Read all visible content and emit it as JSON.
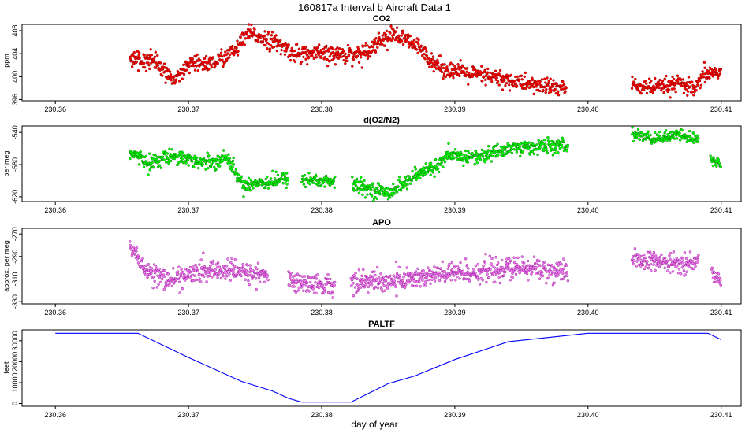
{
  "figure": {
    "title": "160817a   Interval b Aircraft Data 1",
    "xlabel": "day of year"
  },
  "chart_data": [
    {
      "id": "co2",
      "type": "scatter",
      "title": "CO2",
      "ylabel": "ppm",
      "color": "#ff0000",
      "edge_color": "#800000",
      "xlim": [
        230.3575,
        230.4115
      ],
      "ylim": [
        395.8,
        409.1
      ],
      "x_ticks": [
        230.36,
        230.37,
        230.38,
        230.39,
        230.4,
        230.41
      ],
      "x_tick_labels": [
        "230.36",
        "230.37",
        "230.38",
        "230.39",
        "230.40",
        "230.41"
      ],
      "y_ticks": [
        396,
        400,
        404,
        408
      ],
      "y_tick_labels": [
        "396",
        "400",
        "404",
        "408"
      ],
      "segments": [
        {
          "x_start": 230.3656,
          "x_end": 230.3984,
          "noise": 0.75,
          "x": [
            230.3656,
            230.3675,
            230.369,
            230.37,
            230.372,
            230.3735,
            230.3745,
            230.376,
            230.378,
            230.381,
            230.383,
            230.3845,
            230.3855,
            230.387,
            230.389,
            230.391,
            230.393,
            230.396,
            230.3984
          ],
          "y": [
            403.2,
            402.8,
            399.0,
            402.0,
            402.5,
            404.5,
            407.5,
            406.5,
            404.0,
            403.8,
            404.0,
            406.5,
            407.3,
            405.5,
            401.5,
            400.5,
            399.8,
            398.5,
            398.0
          ]
        },
        {
          "x_start": 230.4033,
          "x_end": 230.41,
          "noise": 0.7,
          "x": [
            230.4033,
            230.405,
            230.407,
            230.408,
            230.4088,
            230.41
          ],
          "y": [
            398.5,
            398.0,
            398.8,
            397.5,
            400.5,
            400.8
          ]
        }
      ]
    },
    {
      "id": "do2n2",
      "type": "scatter",
      "title": "d(O2/N2)",
      "ylabel": "per meg",
      "color": "#00ff00",
      "edge_color": "#006400",
      "xlim": [
        230.3575,
        230.4115
      ],
      "ylim": [
        -626,
        -532
      ],
      "x_ticks": [
        230.36,
        230.37,
        230.38,
        230.39,
        230.4,
        230.41
      ],
      "x_tick_labels": [
        "230.36",
        "230.37",
        "230.38",
        "230.39",
        "230.40",
        "230.41"
      ],
      "y_ticks": [
        -620,
        -580,
        -540
      ],
      "y_tick_labels": [
        "-620",
        "-580",
        "-540"
      ],
      "segments": [
        {
          "x_start": 230.3656,
          "x_end": 230.3775,
          "noise": 4.5,
          "x": [
            230.3656,
            230.367,
            230.369,
            230.371,
            230.373,
            230.374,
            230.3775
          ],
          "y": [
            -565,
            -578,
            -568,
            -578,
            -572,
            -605,
            -598
          ]
        },
        {
          "x_start": 230.3785,
          "x_end": 230.381,
          "noise": 4.5,
          "x": [
            230.3785,
            230.381
          ],
          "y": [
            -598,
            -602
          ]
        },
        {
          "x_start": 230.3823,
          "x_end": 230.3985,
          "noise": 4.5,
          "x": [
            230.3823,
            230.384,
            230.385,
            230.387,
            230.389,
            230.3895,
            230.392,
            230.394,
            230.396,
            230.3985
          ],
          "y": [
            -605,
            -612,
            -615,
            -595,
            -578,
            -570,
            -570,
            -560,
            -558,
            -557
          ]
        },
        {
          "x_start": 230.4033,
          "x_end": 230.4083,
          "noise": 3.5,
          "x": [
            230.4033,
            230.405,
            230.407,
            230.4083
          ],
          "y": [
            -542,
            -548,
            -543,
            -550
          ]
        },
        {
          "x_start": 230.4092,
          "x_end": 230.41,
          "noise": 3.5,
          "x": [
            230.4092,
            230.41
          ],
          "y": [
            -573,
            -580
          ]
        }
      ]
    },
    {
      "id": "apo",
      "type": "scatter",
      "title": "APO",
      "ylabel": "approx. per meg",
      "color": "#ee82ee",
      "edge_color": "#8b008b",
      "xlim": [
        230.3575,
        230.4115
      ],
      "ylim": [
        -332,
        -265
      ],
      "x_ticks": [
        230.36,
        230.37,
        230.38,
        230.39,
        230.4,
        230.41
      ],
      "x_tick_labels": [
        "230.36",
        "230.37",
        "230.38",
        "230.39",
        "230.40",
        "230.41"
      ],
      "y_ticks": [
        -330,
        -310,
        -290,
        -270
      ],
      "y_tick_labels": [
        "-330",
        "-310",
        "-290",
        "-270"
      ],
      "segments": [
        {
          "x_start": 230.3656,
          "x_end": 230.376,
          "noise": 4.5,
          "x": [
            230.3656,
            230.3665,
            230.3685,
            230.37,
            230.372,
            230.374,
            230.376
          ],
          "y": [
            -280,
            -298,
            -312,
            -306,
            -302,
            -304,
            -306
          ]
        },
        {
          "x_start": 230.3775,
          "x_end": 230.381,
          "noise": 4.5,
          "x": [
            230.3775,
            230.381
          ],
          "y": [
            -312,
            -316
          ]
        },
        {
          "x_start": 230.3822,
          "x_end": 230.3985,
          "noise": 5.0,
          "x": [
            230.3822,
            230.385,
            230.389,
            230.393,
            230.396,
            230.3985
          ],
          "y": [
            -312,
            -312,
            -306,
            -302,
            -300,
            -306
          ]
        },
        {
          "x_start": 230.4033,
          "x_end": 230.4083,
          "noise": 4.0,
          "x": [
            230.4033,
            230.406,
            230.4083
          ],
          "y": [
            -292,
            -296,
            -296
          ]
        },
        {
          "x_start": 230.4093,
          "x_end": 230.41,
          "noise": 4.0,
          "x": [
            230.4093,
            230.41
          ],
          "y": [
            -304,
            -312
          ]
        }
      ]
    },
    {
      "id": "paltf",
      "type": "line",
      "title": "PALTF",
      "ylabel": "feet",
      "color": "#0000ff",
      "xlim": [
        230.3575,
        230.4115
      ],
      "ylim": [
        -1300,
        35200
      ],
      "x_ticks": [
        230.36,
        230.37,
        230.38,
        230.39,
        230.4,
        230.41
      ],
      "x_tick_labels": [
        "230.36",
        "230.37",
        "230.38",
        "230.39",
        "230.40",
        "230.41"
      ],
      "y_ticks": [
        0,
        10000,
        20000,
        30000
      ],
      "y_tick_labels": [
        "0",
        "10000",
        "20000",
        "30000"
      ],
      "x": [
        230.36,
        230.3662,
        230.37,
        230.374,
        230.3763,
        230.3775,
        230.3785,
        230.381,
        230.3822,
        230.385,
        230.387,
        230.39,
        230.394,
        230.4,
        230.409,
        230.41
      ],
      "y": [
        33600,
        33600,
        22000,
        10500,
        6000,
        2500,
        700,
        700,
        700,
        9500,
        13200,
        21000,
        29500,
        33600,
        33600,
        30500
      ]
    }
  ]
}
